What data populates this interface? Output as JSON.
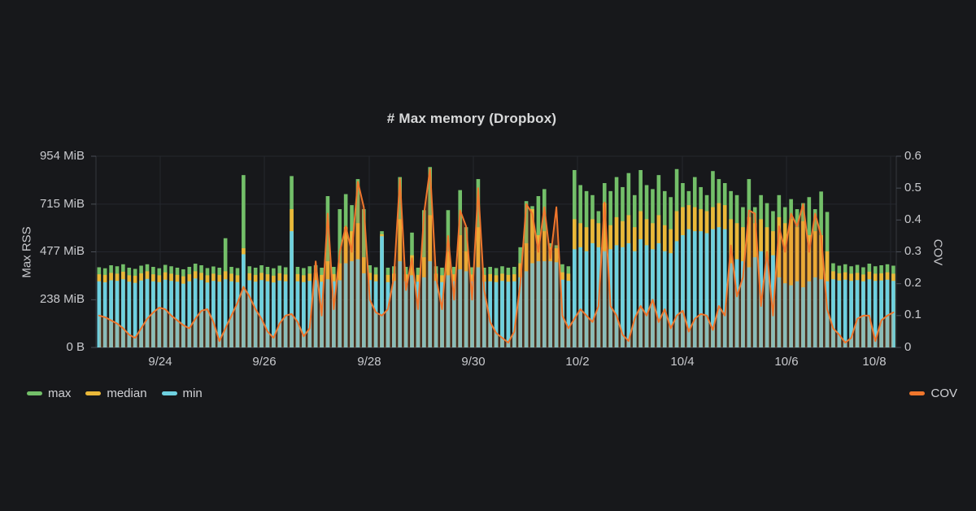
{
  "page": {
    "background": "#17181b"
  },
  "chart_data": {
    "type": "bar",
    "title": "# Max memory (Dropbox)",
    "x_labels": [
      "9/24",
      "9/26",
      "9/28",
      "9/30",
      "10/2",
      "10/4",
      "10/6",
      "10/8"
    ],
    "y_axis_left": {
      "title": "Max RSS",
      "tick_labels": [
        "0 B",
        "238 MiB",
        "477 MiB",
        "715 MiB",
        "954 MiB"
      ],
      "tick_values": [
        0,
        238,
        477,
        715,
        954
      ],
      "max": 954,
      "unit": "MiB"
    },
    "y_axis_right": {
      "title": "COV",
      "tick_labels": [
        "0",
        "0.1",
        "0.2",
        "0.3",
        "0.4",
        "0.5",
        "0.6"
      ],
      "tick_values": [
        0,
        0.1,
        0.2,
        0.3,
        0.4,
        0.5,
        0.6
      ],
      "max": 0.6
    },
    "grid": true,
    "colors": {
      "max": "#73BF69",
      "median": "#EAB839",
      "min": "#6ED0E0",
      "cov": "#F0762C",
      "cov_fill": "rgba(240,118,44,0.22)"
    },
    "series": [
      {
        "name": "max",
        "type": "bar",
        "axis": "left",
        "color": "#73BF69",
        "values": [
          400,
          395,
          410,
          405,
          415,
          398,
          392,
          408,
          415,
          402,
          395,
          412,
          405,
          398,
          390,
          402,
          418,
          410,
          396,
          404,
          398,
          545,
          402,
          396,
          860,
          405,
          398,
          410,
          402,
          395,
          408,
          400,
          855,
          402,
          396,
          405,
          410,
          398,
          755,
          402,
          690,
          765,
          710,
          840,
          690,
          410,
          400,
          580,
          398,
          405,
          850,
          402,
          573,
          398,
          685,
          900,
          405,
          398,
          685,
          402,
          785,
          600,
          400,
          840,
          398,
          402,
          396,
          405,
          398,
          402,
          500,
          730,
          705,
          755,
          790,
          520,
          510,
          415,
          405,
          885,
          810,
          780,
          760,
          680,
          820,
          780,
          850,
          800,
          870,
          760,
          885,
          810,
          790,
          860,
          780,
          750,
          890,
          820,
          780,
          850,
          800,
          760,
          880,
          840,
          820,
          780,
          760,
          700,
          840,
          700,
          760,
          720,
          680,
          760,
          700,
          740,
          690,
          720,
          750,
          690,
          778,
          676,
          420,
          408,
          415,
          405,
          412,
          400,
          418,
          405,
          410,
          415,
          408
        ]
      },
      {
        "name": "median",
        "type": "bar",
        "axis": "left",
        "color": "#EAB839",
        "values": [
          365,
          362,
          372,
          368,
          378,
          360,
          358,
          370,
          380,
          365,
          360,
          375,
          368,
          362,
          355,
          365,
          380,
          372,
          360,
          368,
          362,
          380,
          368,
          360,
          495,
          370,
          362,
          372,
          365,
          358,
          370,
          364,
          690,
          366,
          360,
          368,
          372,
          362,
          430,
          366,
          420,
          600,
          580,
          620,
          450,
          372,
          364,
          565,
          362,
          368,
          640,
          365,
          460,
          362,
          450,
          660,
          368,
          360,
          480,
          365,
          560,
          480,
          364,
          600,
          362,
          366,
          360,
          368,
          362,
          365,
          420,
          520,
          690,
          560,
          580,
          500,
          495,
          375,
          368,
          640,
          620,
          600,
          640,
          620,
          720,
          610,
          650,
          630,
          660,
          600,
          680,
          640,
          620,
          660,
          610,
          590,
          680,
          700,
          710,
          700,
          690,
          680,
          700,
          720,
          710,
          640,
          620,
          600,
          650,
          620,
          640,
          600,
          580,
          650,
          620,
          640,
          600,
          630,
          560,
          580,
          560,
          480,
          380,
          370,
          375,
          368,
          372,
          364,
          378,
          368,
          370,
          375,
          368
        ]
      },
      {
        "name": "min",
        "type": "bar",
        "axis": "left",
        "color": "#6ED0E0",
        "values": [
          330,
          325,
          335,
          332,
          340,
          328,
          322,
          334,
          342,
          330,
          326,
          338,
          332,
          328,
          318,
          330,
          344,
          336,
          324,
          332,
          328,
          340,
          330,
          326,
          465,
          335,
          328,
          336,
          330,
          324,
          334,
          330,
          580,
          330,
          326,
          332,
          336,
          328,
          340,
          330,
          335,
          420,
          430,
          440,
          370,
          336,
          330,
          555,
          326,
          332,
          430,
          330,
          360,
          328,
          350,
          430,
          332,
          326,
          360,
          330,
          390,
          380,
          330,
          400,
          328,
          330,
          326,
          332,
          328,
          330,
          350,
          380,
          420,
          430,
          430,
          430,
          425,
          338,
          332,
          490,
          500,
          480,
          520,
          500,
          480,
          490,
          510,
          500,
          520,
          480,
          540,
          510,
          490,
          520,
          480,
          470,
          530,
          560,
          590,
          580,
          580,
          570,
          590,
          600,
          590,
          420,
          440,
          430,
          400,
          450,
          480,
          440,
          460,
          350,
          320,
          310,
          330,
          300,
          330,
          350,
          340,
          330,
          340,
          334,
          338,
          332,
          336,
          330,
          340,
          332,
          334,
          338,
          332
        ]
      },
      {
        "name": "COV",
        "type": "line",
        "axis": "right",
        "color": "#F0762C",
        "values": [
          0.1,
          0.095,
          0.085,
          0.075,
          0.06,
          0.04,
          0.03,
          0.06,
          0.09,
          0.11,
          0.125,
          0.12,
          0.1,
          0.085,
          0.07,
          0.06,
          0.09,
          0.115,
          0.12,
          0.08,
          0.02,
          0.06,
          0.1,
          0.14,
          0.19,
          0.16,
          0.12,
          0.09,
          0.05,
          0.03,
          0.075,
          0.1,
          0.105,
          0.08,
          0.035,
          0.06,
          0.27,
          0.1,
          0.42,
          0.12,
          0.3,
          0.38,
          0.3,
          0.52,
          0.44,
          0.15,
          0.11,
          0.1,
          0.12,
          0.22,
          0.53,
          0.18,
          0.28,
          0.12,
          0.42,
          0.56,
          0.22,
          0.12,
          0.35,
          0.15,
          0.43,
          0.38,
          0.15,
          0.5,
          0.18,
          0.08,
          0.045,
          0.03,
          0.015,
          0.05,
          0.2,
          0.45,
          0.42,
          0.3,
          0.44,
          0.28,
          0.44,
          0.1,
          0.06,
          0.09,
          0.12,
          0.1,
          0.08,
          0.13,
          0.455,
          0.13,
          0.1,
          0.04,
          0.02,
          0.09,
          0.13,
          0.1,
          0.15,
          0.08,
          0.12,
          0.06,
          0.1,
          0.115,
          0.05,
          0.09,
          0.105,
          0.1,
          0.055,
          0.13,
          0.1,
          0.32,
          0.16,
          0.22,
          0.43,
          0.42,
          0.13,
          0.3,
          0.1,
          0.38,
          0.3,
          0.42,
          0.38,
          0.45,
          0.3,
          0.42,
          0.35,
          0.12,
          0.06,
          0.04,
          0.015,
          0.03,
          0.09,
          0.1,
          0.1,
          0.02,
          0.085,
          0.1,
          0.11
        ]
      }
    ]
  },
  "legend": {
    "left": [
      {
        "label": "max",
        "color": "#73BF69"
      },
      {
        "label": "median",
        "color": "#EAB839"
      },
      {
        "label": "min",
        "color": "#6ED0E0"
      }
    ],
    "right": [
      {
        "label": "COV",
        "color": "#F0762C"
      }
    ]
  }
}
